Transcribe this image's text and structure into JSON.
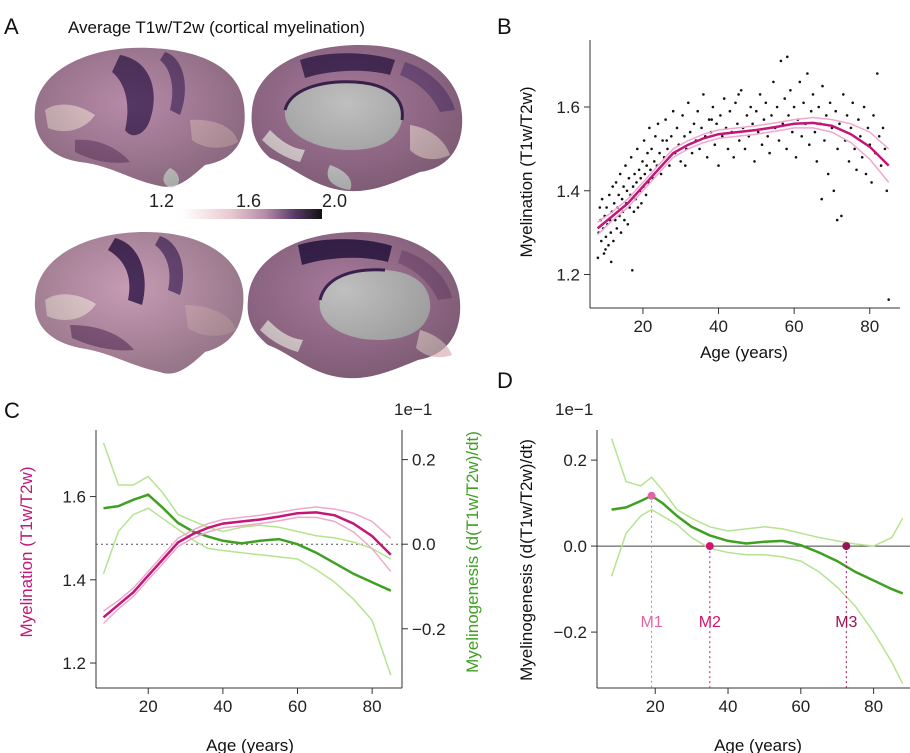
{
  "colors": {
    "myelination": "#c4167a",
    "myelination_light": "#f0a8cc",
    "myelinogenesis": "#3fa021",
    "myelinogenesis_light": "#b6e38f",
    "brain_dark": "#3b2350",
    "brain_mid": "#8d5f86",
    "brain_light": "#e4c6cc",
    "medial_wall": "#bfbfbf",
    "m1": "#e066a8",
    "m2": "#d3146c",
    "m3": "#9b1452"
  },
  "panels": {
    "A": {
      "letter": "A",
      "title": "Average T1w/T2w (cortical myelination)",
      "colorbar_ticks": [
        "1.2",
        "1.6",
        "2.0"
      ]
    },
    "B": {
      "letter": "B"
    },
    "C": {
      "letter": "C"
    },
    "D": {
      "letter": "D"
    }
  },
  "chart_data": [
    {
      "panel": "B",
      "type": "scatter",
      "xlabel": "Age (years)",
      "ylabel": "Myelination (T1w/T2w)",
      "xlim": [
        6,
        88
      ],
      "ylim": [
        1.12,
        1.76
      ],
      "xticks": [
        20,
        40,
        60,
        80
      ],
      "yticks": [
        1.2,
        1.4,
        1.6
      ],
      "ytick_labels": [
        "1.2",
        "1.4",
        "1.6"
      ],
      "n_points_approx": 560,
      "fit": {
        "x": [
          8,
          12,
          16,
          20,
          24,
          28,
          32,
          36,
          40,
          45,
          50,
          55,
          60,
          65,
          70,
          75,
          80,
          85
        ],
        "y": [
          1.31,
          1.34,
          1.37,
          1.41,
          1.45,
          1.49,
          1.51,
          1.525,
          1.535,
          1.54,
          1.545,
          1.552,
          1.56,
          1.562,
          1.555,
          1.535,
          1.505,
          1.46
        ]
      },
      "fit_upper": {
        "x": [
          8,
          12,
          16,
          20,
          24,
          28,
          32,
          36,
          40,
          45,
          50,
          55,
          60,
          65,
          70,
          75,
          80,
          85
        ],
        "y": [
          1.325,
          1.35,
          1.38,
          1.42,
          1.46,
          1.5,
          1.52,
          1.535,
          1.545,
          1.55,
          1.555,
          1.562,
          1.57,
          1.575,
          1.57,
          1.56,
          1.54,
          1.5
        ]
      },
      "fit_lower": {
        "x": [
          8,
          12,
          16,
          20,
          24,
          28,
          32,
          36,
          40,
          45,
          50,
          55,
          60,
          65,
          70,
          75,
          80,
          85
        ],
        "y": [
          1.295,
          1.33,
          1.36,
          1.4,
          1.44,
          1.48,
          1.5,
          1.515,
          1.525,
          1.53,
          1.535,
          1.542,
          1.55,
          1.55,
          1.54,
          1.515,
          1.475,
          1.42
        ]
      },
      "points": [
        [
          8.1,
          1.24
        ],
        [
          8.3,
          1.3
        ],
        [
          8.6,
          1.36
        ],
        [
          8.8,
          1.33
        ],
        [
          9.0,
          1.28
        ],
        [
          9.2,
          1.38
        ],
        [
          9.5,
          1.31
        ],
        [
          9.7,
          1.25
        ],
        [
          9.9,
          1.34
        ],
        [
          10.2,
          1.29
        ],
        [
          10.4,
          1.36
        ],
        [
          10.6,
          1.32
        ],
        [
          10.9,
          1.27
        ],
        [
          11.1,
          1.39
        ],
        [
          11.3,
          1.33
        ],
        [
          11.5,
          1.3
        ],
        [
          11.8,
          1.35
        ],
        [
          12.0,
          1.41
        ],
        [
          12.2,
          1.28
        ],
        [
          12.4,
          1.37
        ],
        [
          12.7,
          1.33
        ],
        [
          12.9,
          1.42
        ],
        [
          13.1,
          1.31
        ],
        [
          13.3,
          1.36
        ],
        [
          13.6,
          1.39
        ],
        [
          13.8,
          1.34
        ],
        [
          14.0,
          1.44
        ],
        [
          14.2,
          1.3
        ],
        [
          14.5,
          1.38
        ],
        [
          14.7,
          1.35
        ],
        [
          14.9,
          1.41
        ],
        [
          15.1,
          1.33
        ],
        [
          15.4,
          1.46
        ],
        [
          15.6,
          1.37
        ],
        [
          15.8,
          1.4
        ],
        [
          16.0,
          1.32
        ],
        [
          16.3,
          1.43
        ],
        [
          16.5,
          1.36
        ],
        [
          16.7,
          1.39
        ],
        [
          16.9,
          1.48
        ],
        [
          17.2,
          1.21
        ],
        [
          17.4,
          1.41
        ],
        [
          17.6,
          1.35
        ],
        [
          17.8,
          1.44
        ],
        [
          18.1,
          1.38
        ],
        [
          18.3,
          1.42
        ],
        [
          18.5,
          1.5
        ],
        [
          18.7,
          1.36
        ],
        [
          19.0,
          1.45
        ],
        [
          19.2,
          1.4
        ],
        [
          19.4,
          1.43
        ],
        [
          19.6,
          1.37
        ],
        [
          19.9,
          1.47
        ],
        [
          20.1,
          1.41
        ],
        [
          20.3,
          1.52
        ],
        [
          20.5,
          1.44
        ],
        [
          20.8,
          1.39
        ],
        [
          21.0,
          1.46
        ],
        [
          21.2,
          1.49
        ],
        [
          21.5,
          1.42
        ],
        [
          21.7,
          1.55
        ],
        [
          22.0,
          1.45
        ],
        [
          22.3,
          1.5
        ],
        [
          22.6,
          1.43
        ],
        [
          23.0,
          1.47
        ],
        [
          23.3,
          1.53
        ],
        [
          23.7,
          1.46
        ],
        [
          24.0,
          1.56
        ],
        [
          24.4,
          1.49
        ],
        [
          24.8,
          1.44
        ],
        [
          25.2,
          1.52
        ],
        [
          25.6,
          1.48
        ],
        [
          26.0,
          1.57
        ],
        [
          26.5,
          1.5
        ],
        [
          27.0,
          1.46
        ],
        [
          27.5,
          1.53
        ],
        [
          28.0,
          1.59
        ],
        [
          28.5,
          1.49
        ],
        [
          29.0,
          1.55
        ],
        [
          29.5,
          1.51
        ],
        [
          30.0,
          1.47
        ],
        [
          30.5,
          1.58
        ],
        [
          31.0,
          1.53
        ],
        [
          31.5,
          1.5
        ],
        [
          32.0,
          1.61
        ],
        [
          32.5,
          1.54
        ],
        [
          33.0,
          1.49
        ],
        [
          33.5,
          1.56
        ],
        [
          34.0,
          1.52
        ],
        [
          34.5,
          1.59
        ],
        [
          35.0,
          1.5
        ],
        [
          35.5,
          1.55
        ],
        [
          36.0,
          1.63
        ],
        [
          36.5,
          1.53
        ],
        [
          37.0,
          1.48
        ],
        [
          37.5,
          1.57
        ],
        [
          38.0,
          1.54
        ],
        [
          38.5,
          1.6
        ],
        [
          39.0,
          1.51
        ],
        [
          39.5,
          1.56
        ],
        [
          40.0,
          1.46
        ],
        [
          40.5,
          1.58
        ],
        [
          41.0,
          1.53
        ],
        [
          41.5,
          1.62
        ],
        [
          42.0,
          1.55
        ],
        [
          42.5,
          1.5
        ],
        [
          43.0,
          1.59
        ],
        [
          43.5,
          1.54
        ],
        [
          44.0,
          1.48
        ],
        [
          44.5,
          1.61
        ],
        [
          45.0,
          1.56
        ],
        [
          45.5,
          1.52
        ],
        [
          46.0,
          1.64
        ],
        [
          46.5,
          1.55
        ],
        [
          47.0,
          1.5
        ],
        [
          47.5,
          1.58
        ],
        [
          48.0,
          1.53
        ],
        [
          48.5,
          1.6
        ],
        [
          49.0,
          1.56
        ],
        [
          49.5,
          1.47
        ],
        [
          50.0,
          1.59
        ],
        [
          50.5,
          1.54
        ],
        [
          51.0,
          1.63
        ],
        [
          51.5,
          1.51
        ],
        [
          52.0,
          1.57
        ],
        [
          52.5,
          1.61
        ],
        [
          53.0,
          1.53
        ],
        [
          53.5,
          1.49
        ],
        [
          54.0,
          1.58
        ],
        [
          54.5,
          1.66
        ],
        [
          55.0,
          1.55
        ],
        [
          55.5,
          1.6
        ],
        [
          56.0,
          1.52
        ],
        [
          56.5,
          1.71
        ],
        [
          57.0,
          1.56
        ],
        [
          57.5,
          1.62
        ],
        [
          58.0,
          1.5
        ],
        [
          58.5,
          1.58
        ],
        [
          59.0,
          1.64
        ],
        [
          59.5,
          1.54
        ],
        [
          60.0,
          1.6
        ],
        [
          60.5,
          1.48
        ],
        [
          61.0,
          1.57
        ],
        [
          61.5,
          1.66
        ],
        [
          62.0,
          1.53
        ],
        [
          62.5,
          1.61
        ],
        [
          63.0,
          1.56
        ],
        [
          63.5,
          1.68
        ],
        [
          64.0,
          1.51
        ],
        [
          64.5,
          1.59
        ],
        [
          65.0,
          1.63
        ],
        [
          65.5,
          1.54
        ],
        [
          66.0,
          1.47
        ],
        [
          66.5,
          1.6
        ],
        [
          67.0,
          1.56
        ],
        [
          67.5,
          1.65
        ],
        [
          68.0,
          1.52
        ],
        [
          68.5,
          1.58
        ],
        [
          69.0,
          1.44
        ],
        [
          69.5,
          1.61
        ],
        [
          70.0,
          1.55
        ],
        [
          70.5,
          1.4
        ],
        [
          71.0,
          1.59
        ],
        [
          71.5,
          1.5
        ],
        [
          72.0,
          1.56
        ],
        [
          72.5,
          1.34
        ],
        [
          73.0,
          1.63
        ],
        [
          73.5,
          1.52
        ],
        [
          74.0,
          1.58
        ],
        [
          74.5,
          1.47
        ],
        [
          75.0,
          1.55
        ],
        [
          75.5,
          1.61
        ],
        [
          76.0,
          1.5
        ],
        [
          76.5,
          1.45
        ],
        [
          77.0,
          1.57
        ],
        [
          77.5,
          1.53
        ],
        [
          78.0,
          1.48
        ],
        [
          78.5,
          1.6
        ],
        [
          79.0,
          1.44
        ],
        [
          79.5,
          1.55
        ],
        [
          80.0,
          1.51
        ],
        [
          80.5,
          1.42
        ],
        [
          81.0,
          1.58
        ],
        [
          81.5,
          1.49
        ],
        [
          82.0,
          1.68
        ],
        [
          82.5,
          1.53
        ],
        [
          83.0,
          1.46
        ],
        [
          83.5,
          1.55
        ],
        [
          84.0,
          1.5
        ],
        [
          84.5,
          1.4
        ],
        [
          85.0,
          1.14
        ],
        [
          58.2,
          1.72
        ],
        [
          45.3,
          1.63
        ],
        [
          38.2,
          1.57
        ],
        [
          26.3,
          1.52
        ],
        [
          31.2,
          1.46
        ],
        [
          67.3,
          1.38
        ],
        [
          71.4,
          1.33
        ],
        [
          10.1,
          1.26
        ],
        [
          11.6,
          1.23
        ]
      ]
    },
    {
      "panel": "C",
      "type": "line",
      "xlabel": "Age (years)",
      "ylabel_left": "Myelination (T1w/T2w)",
      "ylabel_right": "Myelinogenesis (d(T1w/T2w)/dt)",
      "right_axis_multiplier": "1e−1",
      "xlim": [
        6,
        88
      ],
      "ylim_left": [
        1.14,
        1.76
      ],
      "ylim_right": [
        -0.34,
        0.27
      ],
      "xticks": [
        20,
        40,
        60,
        80
      ],
      "yticks_left": [
        1.2,
        1.4,
        1.6
      ],
      "ytick_labels_left": [
        "1.2",
        "1.4",
        "1.6"
      ],
      "yticks_right": [
        -0.2,
        0.0,
        0.2
      ],
      "ytick_labels_right": [
        "−0.2",
        "0.0",
        "0.2"
      ],
      "x": [
        8,
        12,
        16,
        20,
        24,
        28,
        32,
        36,
        40,
        45,
        50,
        55,
        60,
        65,
        70,
        75,
        80,
        85
      ],
      "series": [
        {
          "name": "Myelination (T1w/T2w)",
          "axis": "left",
          "values": [
            1.31,
            1.34,
            1.37,
            1.41,
            1.45,
            1.49,
            1.51,
            1.525,
            1.535,
            1.54,
            1.545,
            1.552,
            1.56,
            1.562,
            1.555,
            1.535,
            1.505,
            1.46
          ],
          "upper": [
            1.325,
            1.35,
            1.38,
            1.42,
            1.46,
            1.5,
            1.52,
            1.535,
            1.545,
            1.55,
            1.555,
            1.562,
            1.57,
            1.575,
            1.57,
            1.56,
            1.54,
            1.5
          ],
          "lower": [
            1.295,
            1.33,
            1.36,
            1.4,
            1.44,
            1.48,
            1.5,
            1.515,
            1.525,
            1.53,
            1.535,
            1.542,
            1.55,
            1.55,
            1.54,
            1.515,
            1.475,
            1.42
          ]
        },
        {
          "name": "Myelinogenesis (d(T1w/T2w)/dt)",
          "axis": "right",
          "values": [
            0.085,
            0.09,
            0.105,
            0.117,
            0.085,
            0.05,
            0.03,
            0.018,
            0.008,
            0.002,
            0.008,
            0.012,
            0.0,
            -0.02,
            -0.045,
            -0.07,
            -0.09,
            -0.11
          ],
          "upper": [
            0.24,
            0.14,
            0.14,
            0.16,
            0.12,
            0.07,
            0.055,
            0.04,
            0.03,
            0.04,
            0.045,
            0.04,
            0.03,
            0.02,
            0.015,
            0.005,
            -0.01,
            -0.035
          ],
          "lower": [
            -0.07,
            0.03,
            0.07,
            0.085,
            0.06,
            0.035,
            0.01,
            -0.01,
            -0.015,
            -0.02,
            -0.025,
            -0.03,
            -0.035,
            -0.06,
            -0.09,
            -0.13,
            -0.18,
            -0.31
          ]
        }
      ],
      "reference_line_right": 0.0
    },
    {
      "panel": "D",
      "type": "line",
      "xlabel": "Age (years)",
      "ylabel": "Myelinogenesis (d(T1w/T2w)/dt)",
      "y_multiplier": "1e−1",
      "xlim": [
        4,
        90
      ],
      "ylim": [
        -0.33,
        0.27
      ],
      "xticks": [
        20,
        40,
        60,
        80
      ],
      "yticks": [
        -0.2,
        0.0,
        0.2
      ],
      "ytick_labels": [
        "−0.2",
        "0.0",
        "0.2"
      ],
      "x": [
        8,
        12,
        16,
        19,
        22,
        26,
        30,
        35,
        40,
        45,
        50,
        55,
        60,
        65,
        70,
        75,
        80,
        85,
        88
      ],
      "values": [
        0.085,
        0.09,
        0.105,
        0.117,
        0.1,
        0.07,
        0.045,
        0.025,
        0.012,
        0.006,
        0.01,
        0.012,
        0.002,
        -0.015,
        -0.035,
        -0.06,
        -0.08,
        -0.1,
        -0.11
      ],
      "upper": [
        0.25,
        0.15,
        0.14,
        0.16,
        0.13,
        0.085,
        0.065,
        0.045,
        0.035,
        0.04,
        0.045,
        0.04,
        0.03,
        0.02,
        0.012,
        0.005,
        0.0,
        0.02,
        0.065
      ],
      "lower": [
        -0.07,
        0.03,
        0.07,
        0.085,
        0.07,
        0.05,
        0.02,
        -0.005,
        -0.015,
        -0.02,
        -0.02,
        -0.025,
        -0.035,
        -0.06,
        -0.095,
        -0.14,
        -0.2,
        -0.27,
        -0.32
      ],
      "reference_line": 0.0,
      "markers": [
        {
          "label": "M1",
          "x": 19,
          "y": 0.117
        },
        {
          "label": "M2",
          "x": 35,
          "y": 0.0
        },
        {
          "label": "M3",
          "x": 72.5,
          "y": 0.0
        }
      ]
    }
  ]
}
